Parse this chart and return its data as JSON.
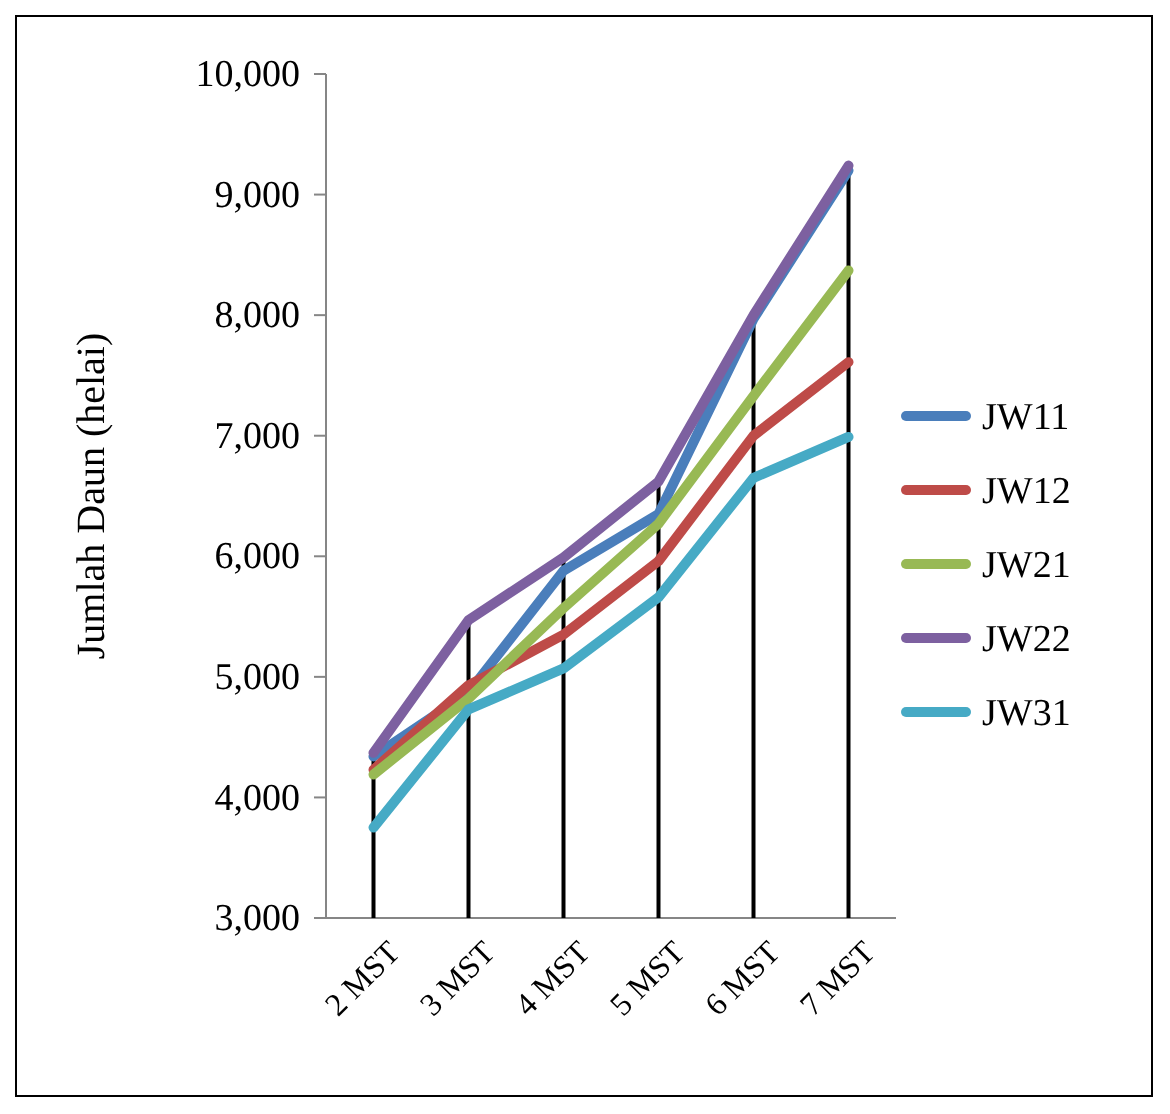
{
  "chart_data": {
    "type": "line",
    "ylabel": "Jumlah Daun (helai)",
    "categories": [
      "2 MST",
      "3 MST",
      "4 MST",
      "5 MST",
      "6 MST",
      "7 MST"
    ],
    "series": [
      {
        "name": "JW11",
        "color": "#4a7ebb",
        "values": [
          4340,
          4870,
          5880,
          6350,
          7970,
          9200
        ]
      },
      {
        "name": "JW12",
        "color": "#be4b48",
        "values": [
          4230,
          4930,
          5350,
          5960,
          7000,
          7610
        ]
      },
      {
        "name": "JW21",
        "color": "#98b954",
        "values": [
          4190,
          4820,
          5570,
          6270,
          7330,
          8370
        ]
      },
      {
        "name": "JW22",
        "color": "#7d60a0",
        "values": [
          4370,
          5470,
          5990,
          6620,
          8000,
          9240
        ]
      },
      {
        "name": "JW31",
        "color": "#46aac5",
        "values": [
          3750,
          4730,
          5070,
          5660,
          6650,
          6990
        ]
      }
    ],
    "ylim": [
      3000,
      10000
    ],
    "yticks": [
      {
        "value": 3000,
        "label": "3,000"
      },
      {
        "value": 4000,
        "label": "4,000"
      },
      {
        "value": 5000,
        "label": "5,000"
      },
      {
        "value": 6000,
        "label": "6,000"
      },
      {
        "value": 7000,
        "label": "7,000"
      },
      {
        "value": 8000,
        "label": "8,000"
      },
      {
        "value": 9000,
        "label": "9,000"
      },
      {
        "value": 10000,
        "label": "10,000"
      }
    ],
    "ref_lines": [
      {
        "axis": "x",
        "value": "2 MST",
        "color": "#000000"
      },
      {
        "axis": "x",
        "value": "3 MST",
        "color": "#000000"
      },
      {
        "axis": "x",
        "value": "4 MST",
        "color": "#000000"
      },
      {
        "axis": "x",
        "value": "5 MST",
        "color": "#000000"
      },
      {
        "axis": "x",
        "value": "6 MST",
        "color": "#000000"
      },
      {
        "axis": "x",
        "value": "7 MST",
        "color": "#000000"
      }
    ],
    "grid": false,
    "legend": "right",
    "marker": "none",
    "line_style": "solid"
  }
}
